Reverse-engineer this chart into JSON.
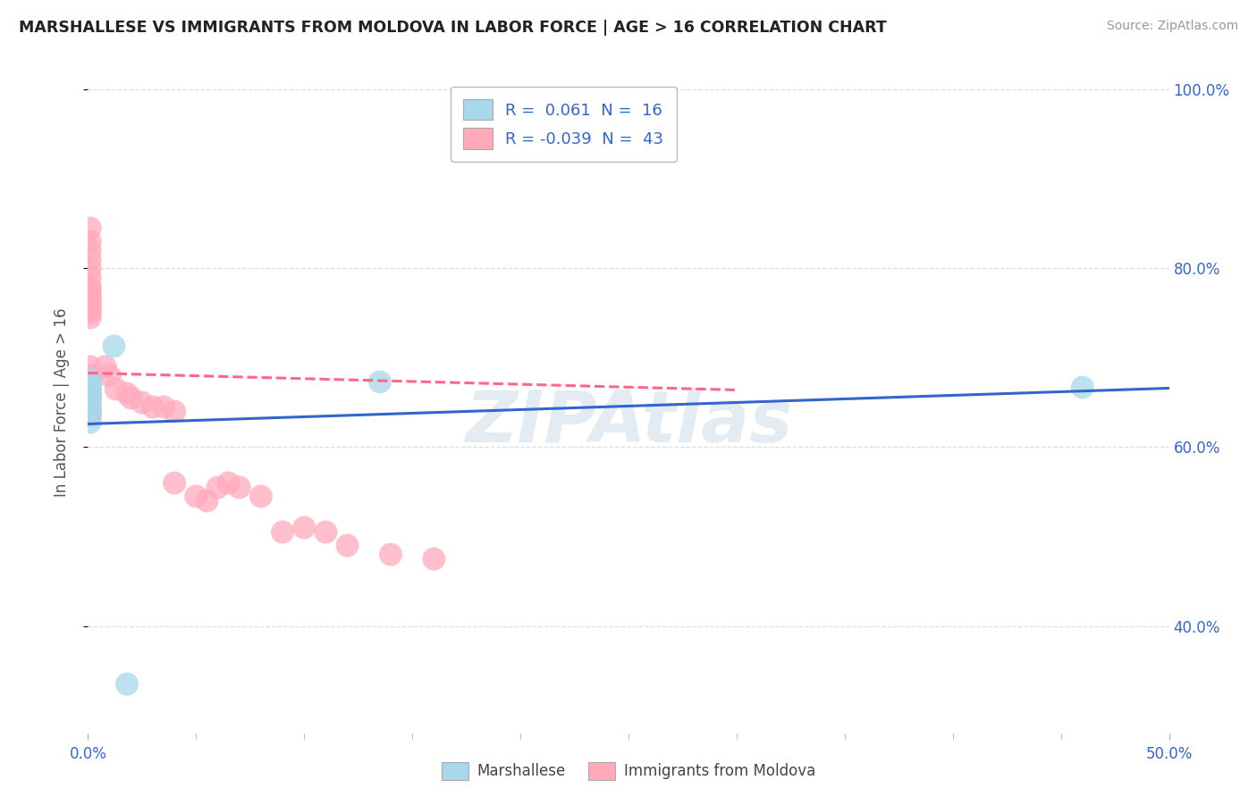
{
  "title": "MARSHALLESE VS IMMIGRANTS FROM MOLDOVA IN LABOR FORCE | AGE > 16 CORRELATION CHART",
  "source": "Source: ZipAtlas.com",
  "ylabel": "In Labor Force | Age > 16",
  "legend_blue_r": "0.061",
  "legend_blue_n": "16",
  "legend_pink_r": "-0.039",
  "legend_pink_n": "43",
  "blue_scatter_color": "#A8D8EA",
  "pink_scatter_color": "#FFAABB",
  "blue_line_color": "#3366CC",
  "pink_line_color": "#FF6688",
  "grid_color": "#DDDDDD",
  "background_color": "#FFFFFF",
  "watermark": "ZIPAtlas",
  "marshallese_x": [
    0.001,
    0.001,
    0.001,
    0.001,
    0.001,
    0.001,
    0.001,
    0.001,
    0.012,
    0.135,
    0.46,
    0.001,
    0.001,
    0.001,
    0.001,
    0.018
  ],
  "marshallese_y": [
    0.66,
    0.663,
    0.665,
    0.668,
    0.67,
    0.673,
    0.675,
    0.655,
    0.713,
    0.673,
    0.667,
    0.648,
    0.643,
    0.638,
    0.628,
    0.335
  ],
  "moldova_x": [
    0.001,
    0.001,
    0.001,
    0.001,
    0.001,
    0.001,
    0.001,
    0.001,
    0.001,
    0.001,
    0.001,
    0.001,
    0.001,
    0.001,
    0.001,
    0.001,
    0.001,
    0.001,
    0.001,
    0.001,
    0.001,
    0.008,
    0.01,
    0.013,
    0.018,
    0.02,
    0.025,
    0.03,
    0.035,
    0.04,
    0.04,
    0.05,
    0.055,
    0.06,
    0.065,
    0.07,
    0.08,
    0.09,
    0.1,
    0.11,
    0.12,
    0.14,
    0.16
  ],
  "moldova_y": [
    0.845,
    0.83,
    0.82,
    0.81,
    0.8,
    0.79,
    0.78,
    0.775,
    0.77,
    0.765,
    0.76,
    0.755,
    0.75,
    0.745,
    0.69,
    0.68,
    0.67,
    0.66,
    0.65,
    0.64,
    0.635,
    0.69,
    0.68,
    0.665,
    0.66,
    0.655,
    0.65,
    0.645,
    0.645,
    0.64,
    0.56,
    0.545,
    0.54,
    0.555,
    0.56,
    0.555,
    0.545,
    0.505,
    0.51,
    0.505,
    0.49,
    0.48,
    0.475
  ],
  "blue_line_x": [
    0.0,
    0.5
  ],
  "blue_line_y": [
    0.626,
    0.666
  ],
  "pink_line_x": [
    0.0,
    0.3
  ],
  "pink_line_y": [
    0.683,
    0.664
  ],
  "xmin": 0.0,
  "xmax": 0.5,
  "ymin": 0.28,
  "ymax": 1.02,
  "yticks": [
    0.4,
    0.6,
    0.8,
    1.0
  ],
  "ytick_labels": [
    "40.0%",
    "60.0%",
    "80.0%",
    "100.0%"
  ]
}
